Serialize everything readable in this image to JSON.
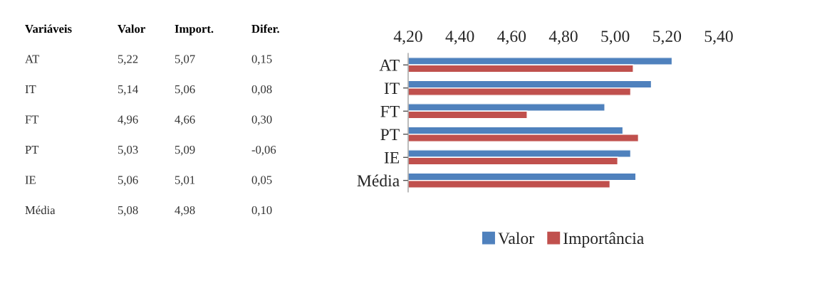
{
  "chart_data": {
    "type": "bar",
    "orientation": "horizontal",
    "categories": [
      "AT",
      "IT",
      "FT",
      "PT",
      "IE",
      "Média"
    ],
    "series": [
      {
        "name": "Valor",
        "color": "#4f81bd",
        "values": [
          5.22,
          5.14,
          4.96,
          5.03,
          5.06,
          5.08
        ]
      },
      {
        "name": "Importância",
        "color": "#c0504d",
        "values": [
          5.07,
          5.06,
          4.66,
          5.09,
          5.01,
          4.98
        ]
      }
    ],
    "xlim": [
      4.2,
      5.4
    ],
    "xticks": [
      {
        "value": 4.2,
        "label": "4,20"
      },
      {
        "value": 4.4,
        "label": "4,40"
      },
      {
        "value": 4.6,
        "label": "4,60"
      },
      {
        "value": 4.8,
        "label": "4,80"
      },
      {
        "value": 5.0,
        "label": "5,00"
      },
      {
        "value": 5.2,
        "label": "5,20"
      },
      {
        "value": 5.4,
        "label": "5,40"
      }
    ],
    "legend": "bottom",
    "grid": false,
    "annotations": [
      "Variáveis",
      "Valor",
      "Import.",
      "Difer.",
      "AT",
      "5,22",
      "5,07",
      "0,15",
      "IT",
      "5,14",
      "5,06",
      "0,08",
      "FT",
      "4,96",
      "4,66",
      "0,30",
      "PT",
      "5,03",
      "5,09",
      "-0,06",
      "IE",
      "5,06",
      "5,01",
      "0,05",
      "Média",
      "5,08",
      "4,98",
      "0,10"
    ]
  }
}
